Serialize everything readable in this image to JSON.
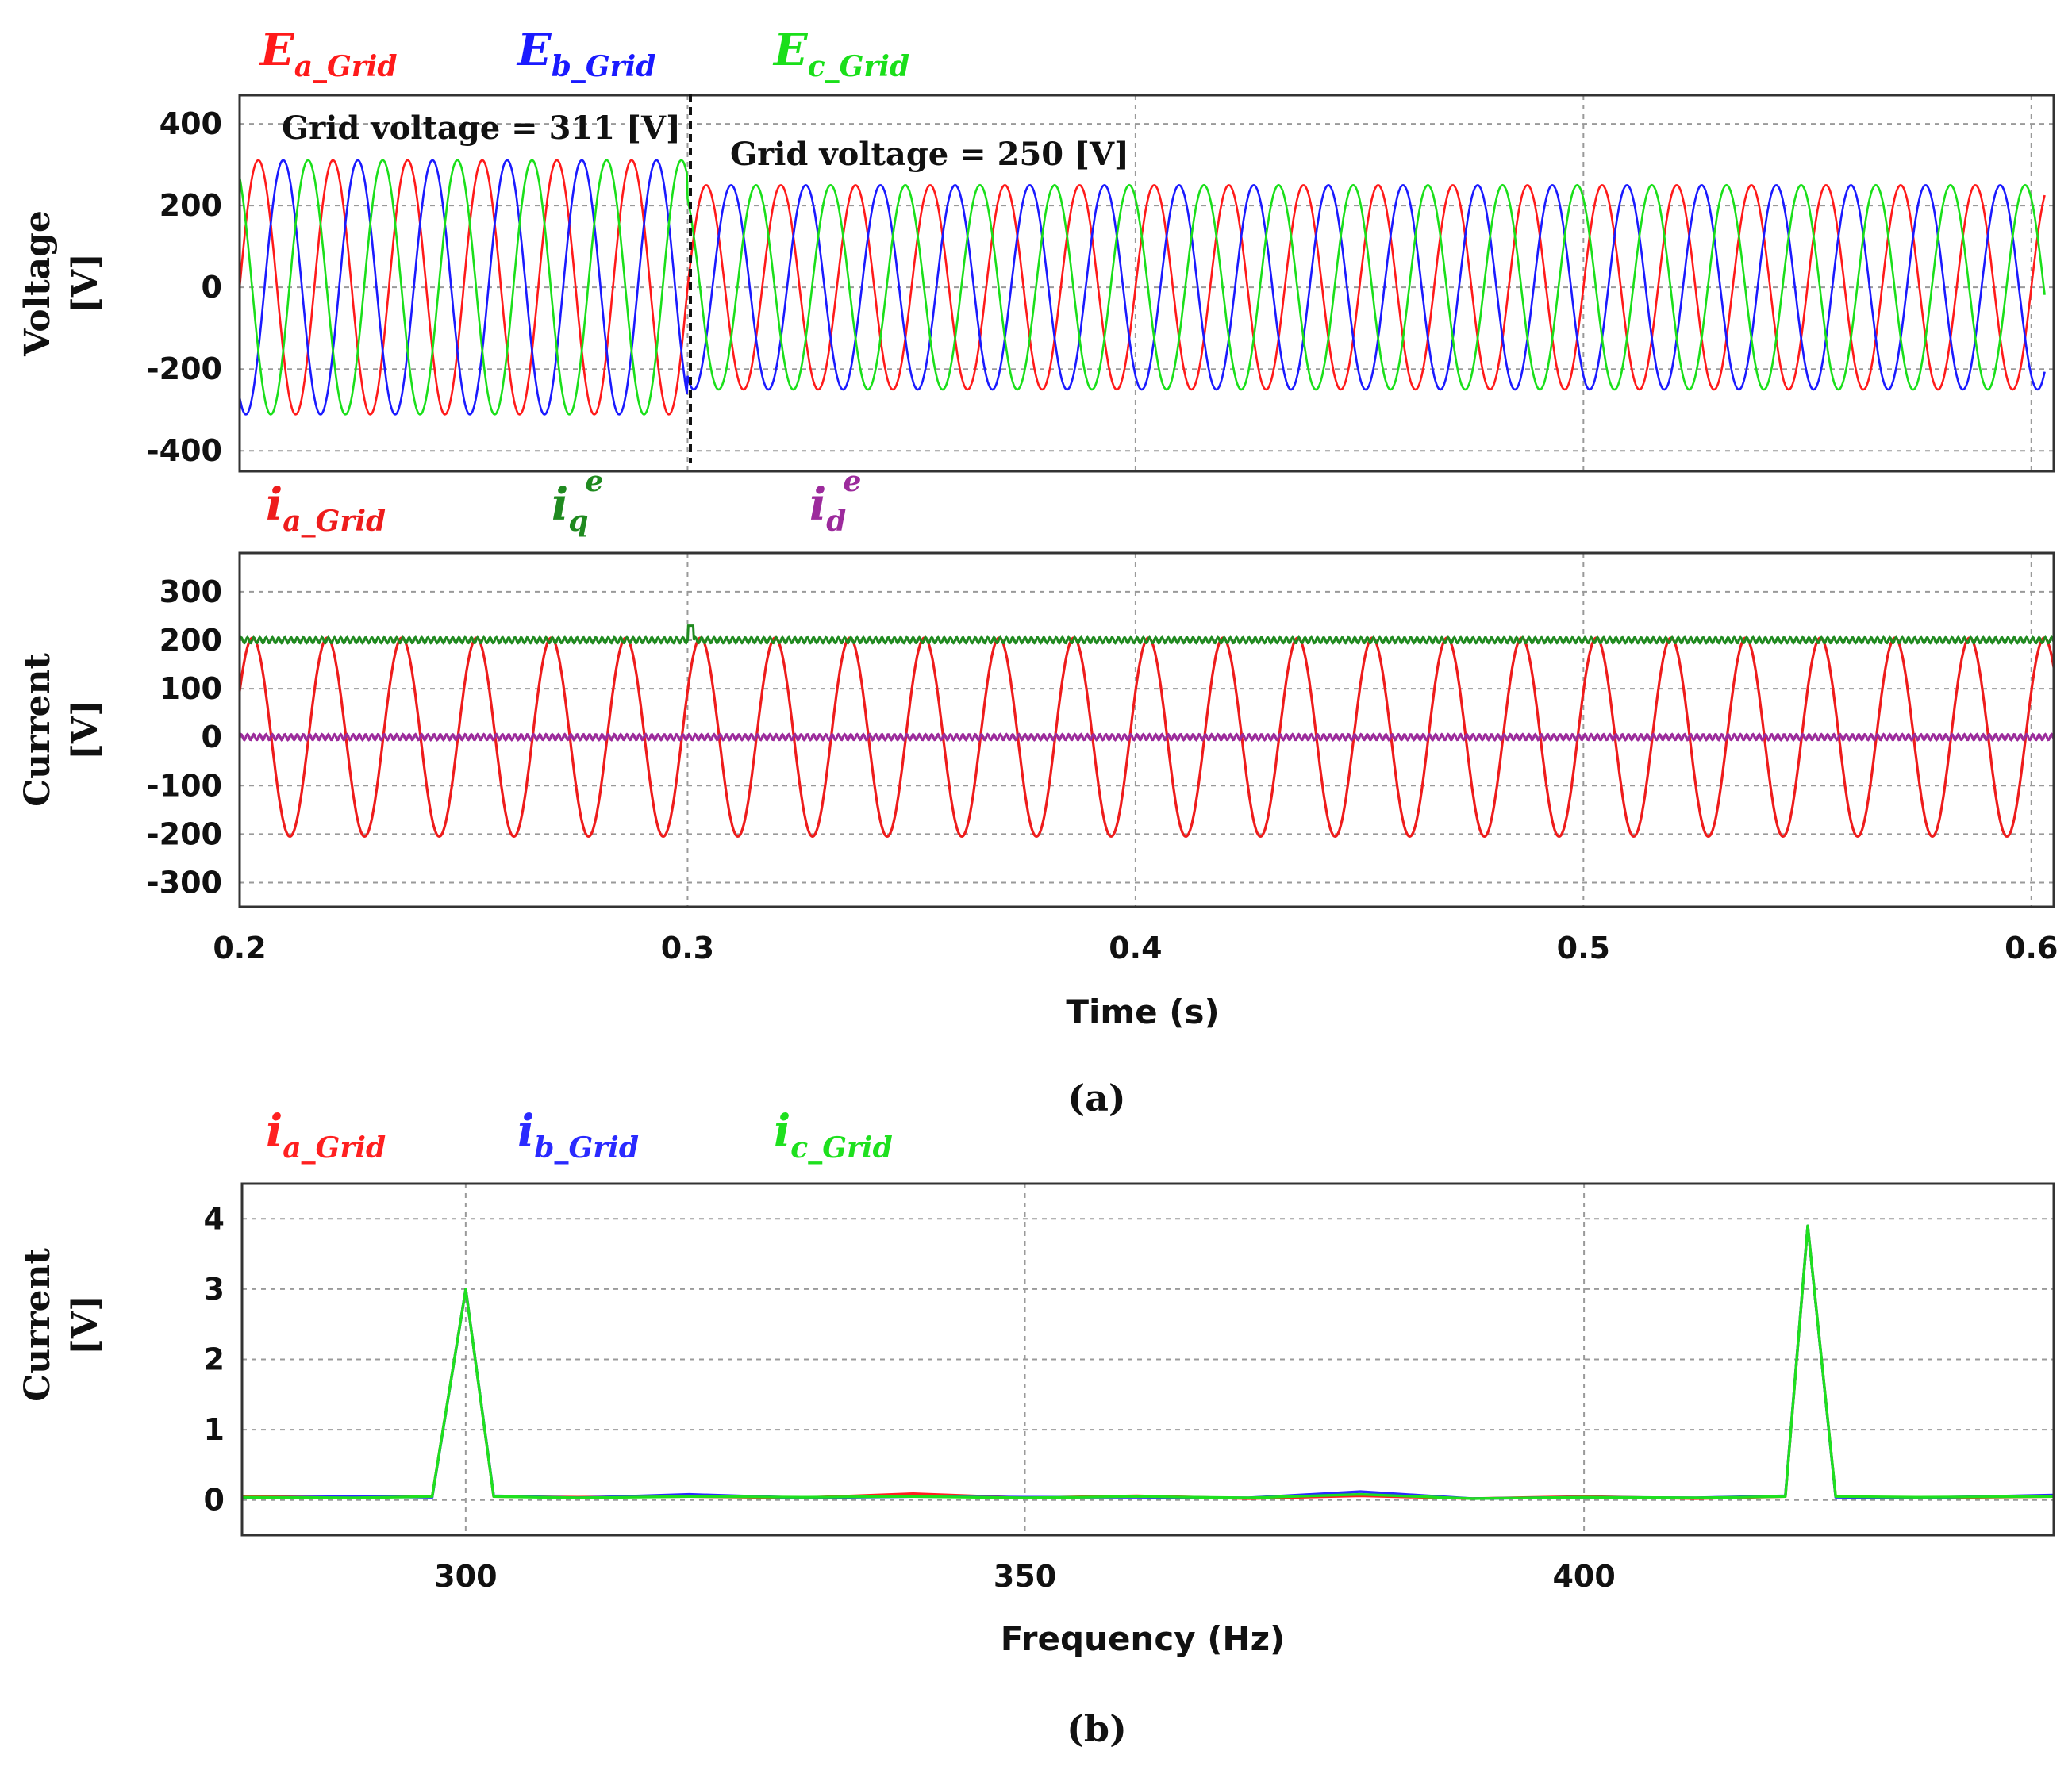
{
  "chart_data": [
    {
      "panel": "a-top",
      "type": "line",
      "ylabel": [
        "Voltage",
        "[V]"
      ],
      "xlim": [
        0.2,
        0.605
      ],
      "ylim": [
        -450,
        470
      ],
      "yticks": [
        400,
        200,
        0,
        -200,
        -400
      ],
      "xticks": [
        0.2,
        0.3,
        0.4,
        0.5,
        0.6
      ],
      "grid": true,
      "frequency_hz": 60,
      "step_time_s": 0.3,
      "amplitude_before_v": 311,
      "amplitude_after_v": 250,
      "series": [
        {
          "name": "Ea_Grid",
          "base": "E",
          "sub": "a_Grid",
          "color": "#ff1a1a",
          "phase_deg": 0
        },
        {
          "name": "Eb_Grid",
          "base": "E",
          "sub": "b_Grid",
          "color": "#1a1aff",
          "phase_deg": -120
        },
        {
          "name": "Ec_Grid",
          "base": "E",
          "sub": "c_Grid",
          "color": "#1adf1a",
          "phase_deg": 120
        }
      ],
      "annotations": [
        "Grid voltage = 311 [V]",
        "Grid voltage = 250 [V]"
      ]
    },
    {
      "panel": "a-bottom",
      "type": "line",
      "ylabel": [
        "Current",
        "[V]"
      ],
      "xlabel": "Time (s)",
      "xlim": [
        0.2,
        0.605
      ],
      "ylim": [
        -350,
        380
      ],
      "yticks": [
        300,
        200,
        100,
        0,
        -100,
        -200,
        -300
      ],
      "xticks": [
        0.2,
        0.3,
        0.4,
        0.5,
        0.6
      ],
      "xtick_labels": [
        "0.2",
        "0.3",
        "0.4",
        "0.5",
        "0.6"
      ],
      "grid": true,
      "series": [
        {
          "name": "ia_Grid",
          "base": "i",
          "sub": "a_Grid",
          "sup": "",
          "color": "#ee1c1c",
          "kind": "sine",
          "amplitude": 205,
          "frequency_hz": 60
        },
        {
          "name": "iq^e",
          "base": "i",
          "sub": "q",
          "sup": "e",
          "color": "#1f8a1f",
          "kind": "dc",
          "value": 200
        },
        {
          "name": "id^e",
          "base": "i",
          "sub": "d",
          "sup": "e",
          "color": "#9c2a9c",
          "kind": "dc",
          "value": 0
        }
      ]
    },
    {
      "panel": "b",
      "type": "line",
      "ylabel": [
        "Current",
        "[V]"
      ],
      "xlabel": "Frequency (Hz)",
      "xlim": [
        280,
        442
      ],
      "ylim": [
        -0.5,
        4.5
      ],
      "yticks": [
        4,
        3,
        2,
        1,
        0
      ],
      "xticks": [
        300,
        350,
        400
      ],
      "xtick_labels": [
        "300",
        "350",
        "400"
      ],
      "grid": true,
      "series": [
        {
          "name": "ia_Grid",
          "base": "i",
          "sub": "a_Grid",
          "color": "#ff2020",
          "x": [
            280,
            290,
            297,
            300,
            302.5,
            310,
            320,
            330,
            340,
            350,
            360,
            370,
            380,
            390,
            400,
            410,
            418,
            420,
            422.5,
            430,
            442
          ],
          "y": [
            0.05,
            0.04,
            0.05,
            3.0,
            0.05,
            0.04,
            0.05,
            0.03,
            0.09,
            0.03,
            0.06,
            0.02,
            0.06,
            0.02,
            0.05,
            0.02,
            0.05,
            3.9,
            0.05,
            0.03,
            0.05
          ]
        },
        {
          "name": "ib_Grid",
          "base": "i",
          "sub": "b_Grid",
          "color": "#2a2aff",
          "x": [
            280,
            290,
            297,
            300,
            302.5,
            310,
            320,
            330,
            340,
            350,
            360,
            370,
            380,
            390,
            400,
            410,
            418,
            420,
            422.5,
            430,
            442
          ],
          "y": [
            0.03,
            0.05,
            0.04,
            3.0,
            0.06,
            0.03,
            0.08,
            0.03,
            0.05,
            0.04,
            0.04,
            0.03,
            0.12,
            0.02,
            0.04,
            0.03,
            0.06,
            3.9,
            0.04,
            0.03,
            0.07
          ]
        },
        {
          "name": "ic_Grid",
          "base": "i",
          "sub": "c_Grid",
          "color": "#1ee01e",
          "x": [
            280,
            290,
            297,
            300,
            302.5,
            310,
            320,
            330,
            340,
            350,
            360,
            370,
            380,
            390,
            400,
            410,
            418,
            420,
            422.5,
            430,
            442
          ],
          "y": [
            0.04,
            0.03,
            0.05,
            3.0,
            0.05,
            0.03,
            0.05,
            0.04,
            0.05,
            0.03,
            0.05,
            0.03,
            0.08,
            0.02,
            0.04,
            0.03,
            0.05,
            3.9,
            0.05,
            0.04,
            0.05
          ]
        }
      ]
    }
  ],
  "captions": {
    "a": "(a)",
    "b": "(b)"
  }
}
